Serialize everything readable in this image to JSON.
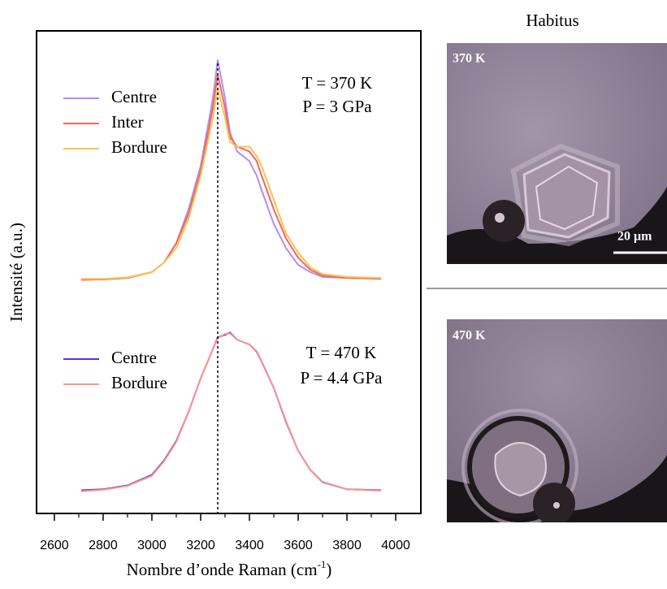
{
  "chart_data": {
    "type": "line",
    "xlabel": {
      "text": "Nombre d’onde Raman (cm",
      "sup": "-1",
      "tail": ")"
    },
    "ylabel": "Intensité (a.u.)",
    "xlim": [
      2527,
      4103
    ],
    "ylim": [
      0,
      100
    ],
    "xticks": [
      2600,
      2800,
      3000,
      3200,
      3400,
      3600,
      3800,
      4000
    ],
    "xminor": [
      2700,
      2900,
      3100,
      3300,
      3500,
      3700,
      3900
    ],
    "vline": 3270,
    "x": [
      2710,
      2800,
      2900,
      3000,
      3050,
      3100,
      3150,
      3200,
      3250,
      3270,
      3300,
      3320,
      3350,
      3400,
      3430,
      3450,
      3500,
      3550,
      3600,
      3650,
      3700,
      3800,
      3940
    ],
    "series_groups": [
      {
        "annotation": [
          "T = 370 K",
          "P =  3 GPa"
        ],
        "series": [
          {
            "name": "Centre",
            "color": "#b48cf0",
            "values": [
              48.5,
              48.5,
              48.8,
              50,
              52,
              56,
              63,
              72,
              86,
              94,
              86,
              79,
              75,
              73,
              70,
              67,
              60,
              55,
              51.5,
              50,
              49,
              48.8,
              48.7
            ]
          },
          {
            "name": "Inter",
            "color": "#f0685a",
            "values": [
              48.4,
              48.5,
              48.8,
              50,
              52,
              56,
              62,
              71,
              84,
              91,
              84,
              78,
              76,
              75,
              73,
              70,
              63,
              57,
              53,
              50.5,
              49.3,
              48.8,
              48.6
            ]
          },
          {
            "name": "Bordure",
            "color": "#f6c455",
            "values": [
              48.6,
              48.6,
              48.9,
              50,
              52,
              55,
              61,
              70,
              82,
              88,
              82,
              77,
              76,
              76,
              74,
              72,
              65,
              58,
              54,
              51,
              49.6,
              49,
              48.8
            ]
          }
        ]
      },
      {
        "annotation": [
          "T = 470 K",
          "P = 4.4 GPa"
        ],
        "series": [
          {
            "name": "Centre",
            "color": "#6a2ed6",
            "values": [
              4.8,
              5,
              5.8,
              8,
              11,
              15,
              21,
              28,
              34,
              36.5,
              37,
              37.5,
              36,
              35,
              33.5,
              31.5,
              26,
              19,
              13,
              9,
              6.5,
              5,
              4.8
            ]
          },
          {
            "name": "Bordure",
            "color": "#f49a90",
            "values": [
              4.6,
              4.9,
              5.7,
              7.8,
              10.8,
              14.8,
              21,
              28,
              34,
              36.3,
              37.2,
              37.3,
              36,
              35,
              33.6,
              31.6,
              26,
              19.2,
              13,
              9,
              6.4,
              5,
              4.7
            ]
          }
        ]
      }
    ]
  },
  "images": {
    "title": "Habitus",
    "panels": [
      {
        "label": "370 K",
        "scalebar": "20 μm"
      },
      {
        "label": "470 K"
      }
    ]
  }
}
